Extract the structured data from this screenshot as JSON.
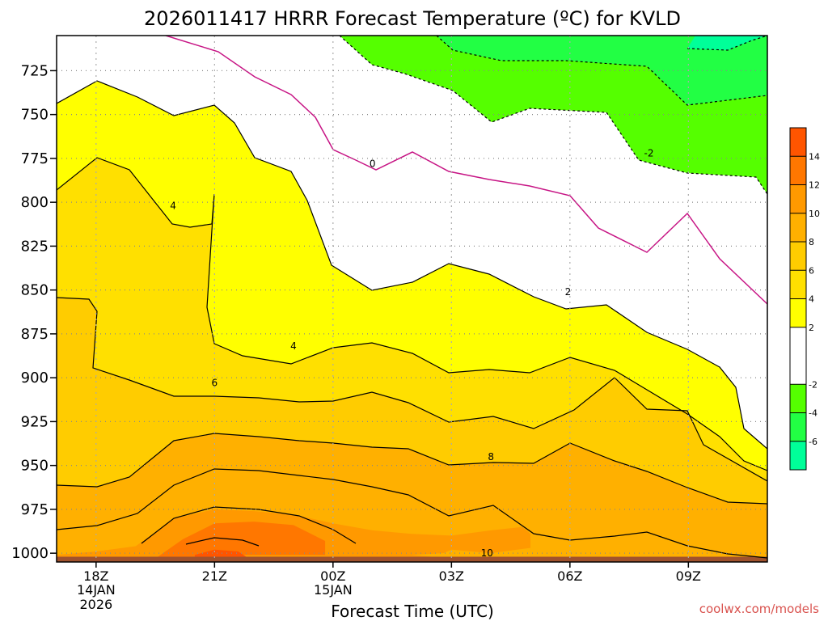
{
  "chart_data": {
    "type": "heatmap",
    "title": "2026011417 HRRR Forecast Temperature (ºC) for KVLD",
    "xlabel": "Forecast Time (UTC)",
    "ylabel": "",
    "credit": "coolwx.com/models",
    "y_axis": {
      "ticks": [
        725,
        750,
        775,
        800,
        825,
        850,
        875,
        900,
        925,
        950,
        975,
        1000
      ],
      "range": [
        1005,
        705
      ]
    },
    "x_axis": {
      "range": [
        17,
        35
      ],
      "ticks": [
        {
          "x": 18,
          "label": "18Z",
          "sub1": "14JAN",
          "sub2": "2026"
        },
        {
          "x": 21,
          "label": "21Z",
          "sub1": "",
          "sub2": ""
        },
        {
          "x": 24,
          "label": "00Z",
          "sub1": "15JAN",
          "sub2": ""
        },
        {
          "x": 27,
          "label": "03Z",
          "sub1": "",
          "sub2": ""
        },
        {
          "x": 30,
          "label": "06Z",
          "sub1": "",
          "sub2": ""
        },
        {
          "x": 33,
          "label": "09Z",
          "sub1": "",
          "sub2": ""
        }
      ]
    },
    "colorbar": {
      "levels": [
        -8,
        -6,
        -4,
        -2,
        2,
        4,
        6,
        8,
        10,
        12,
        14,
        16
      ],
      "tick_labels": [
        "-6",
        "-4",
        "-2",
        "2",
        "4",
        "6",
        "8",
        "10",
        "12",
        "14"
      ],
      "colors": [
        "#00ff99",
        "#22ff44",
        "#55ff00",
        "#ffffff",
        "#ffff00",
        "#ffe000",
        "#ffcc00",
        "#ffb000",
        "#ff9900",
        "#ff7700",
        "#ff5500"
      ]
    },
    "contour_labels": [
      {
        "text": "0",
        "x": 25.0,
        "y": 778
      },
      {
        "text": "-2",
        "x": 32.0,
        "y": 772
      },
      {
        "text": "2",
        "x": 29.95,
        "y": 851
      },
      {
        "text": "4",
        "x": 19.95,
        "y": 802
      },
      {
        "text": "4",
        "x": 23.0,
        "y": 882
      },
      {
        "text": "6",
        "x": 21.0,
        "y": 903
      },
      {
        "text": "8",
        "x": 28.0,
        "y": 945
      },
      {
        "text": "10",
        "x": 27.9,
        "y": 1000
      }
    ],
    "regions": [
      {
        "name": "temp-region-10-12",
        "fill": "#ff9900",
        "pts": [
          [
            17,
            1001
          ],
          [
            18,
            999
          ],
          [
            19,
            996
          ],
          [
            20,
            980
          ],
          [
            21,
            975
          ],
          [
            22,
            976
          ],
          [
            23,
            978
          ],
          [
            24,
            983
          ],
          [
            25,
            987
          ],
          [
            26,
            989
          ],
          [
            27,
            990
          ],
          [
            28,
            987
          ],
          [
            28.8,
            985
          ],
          [
            29,
            989
          ],
          [
            29,
            997
          ],
          [
            28,
            1000
          ],
          [
            27,
            998
          ],
          [
            26.8,
            1000
          ],
          [
            26,
            1001
          ],
          [
            27,
            1003
          ],
          [
            29,
            1003
          ],
          [
            35,
            1003
          ],
          [
            35,
            1005
          ],
          [
            17,
            1005
          ]
        ]
      },
      {
        "name": "temp-region-12-14",
        "fill": "#ff7700",
        "pts": [
          [
            19.5,
            1003
          ],
          [
            20.2,
            992
          ],
          [
            21,
            983
          ],
          [
            22,
            982
          ],
          [
            23,
            984
          ],
          [
            23.8,
            993
          ],
          [
            23.8,
            1001
          ],
          [
            22.5,
            1001
          ],
          [
            21,
            1001
          ],
          [
            20.2,
            1003
          ]
        ]
      },
      {
        "name": "temp-region-14-16",
        "fill": "#ff5500",
        "pts": [
          [
            20.5,
            1001
          ],
          [
            21,
            998
          ],
          [
            21.6,
            999
          ],
          [
            21.8,
            1002
          ],
          [
            20.5,
            1002
          ]
        ]
      },
      {
        "name": "ground",
        "fill": "#a0522d",
        "pts": [
          [
            17,
            1002
          ],
          [
            35,
            1002
          ],
          [
            35,
            1005
          ],
          [
            17,
            1005
          ]
        ]
      }
    ]
  }
}
